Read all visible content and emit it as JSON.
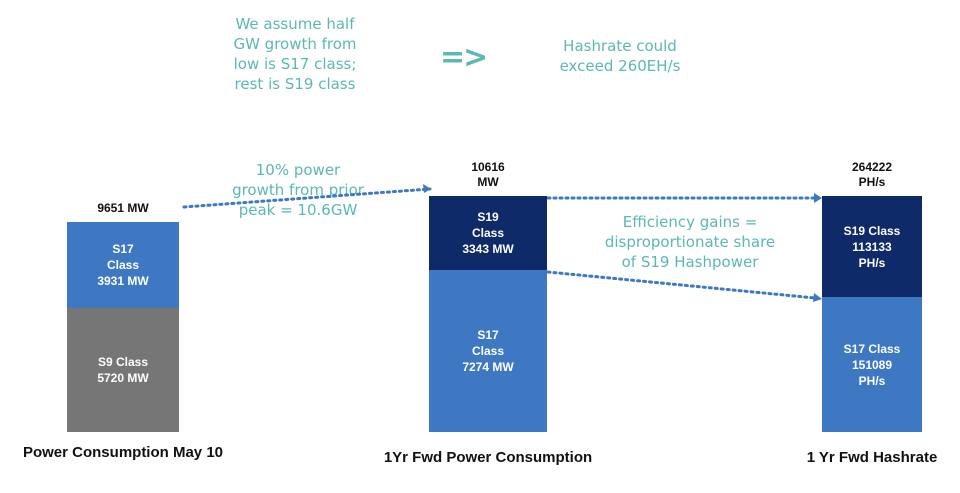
{
  "colors": {
    "s9": "#767676",
    "s17": "#3e78c2",
    "s19": "#0f2a68",
    "accent": "#5bb8b3",
    "dots": "#3e78c2"
  },
  "notes": {
    "assumption": "We assume half\nGW growth from\nlow is S17 class;\nrest is S19 class",
    "arrow": "=>",
    "hashrate": "Hashrate could\nexceed 260EH/s",
    "growth": "10% power\ngrowth from prior\npeak = 10.6GW",
    "efficiency": "Efficiency gains =\ndisproportionate share\nof S19 Hashpower"
  },
  "chart_data": {
    "type": "bar",
    "stacked": true,
    "categories": [
      "Power Consumption May 10",
      "1Yr Fwd Power Consumption",
      "1 Yr Fwd Hashrate"
    ],
    "bars": [
      {
        "caption": "Power Consumption May 10",
        "total_label": "9651 MW",
        "total": 9651,
        "unit": "MW",
        "segments": [
          {
            "key": "s9",
            "label": "S9 Class\n5720 MW",
            "value": 5720
          },
          {
            "key": "s17",
            "label": "S17\nClass\n3931 MW",
            "value": 3931
          }
        ]
      },
      {
        "caption": "1Yr Fwd Power Consumption",
        "total_label": "10616\nMW",
        "total": 10616,
        "unit": "MW",
        "segments": [
          {
            "key": "s17",
            "label": "S17\nClass\n7274 MW",
            "value": 7274
          },
          {
            "key": "s19",
            "label": "S19\nClass\n3343 MW",
            "value": 3343
          }
        ]
      },
      {
        "caption": "1 Yr Fwd Hashrate",
        "total_label": "264222\nPH/s",
        "total": 264222,
        "unit": "PH/s",
        "segments": [
          {
            "key": "s17",
            "label": "S17 Class\n151089\nPH/s",
            "value": 151089
          },
          {
            "key": "s19",
            "label": "S19 Class\n113133\nPH/s",
            "value": 113133
          }
        ]
      }
    ]
  }
}
